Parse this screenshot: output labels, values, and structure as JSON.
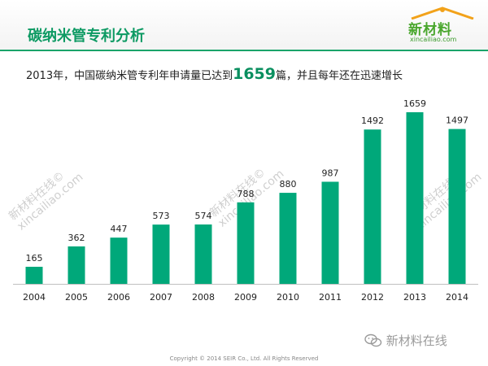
{
  "header": {
    "title": "碳纳米管专利分析",
    "logo_main": "新材料",
    "logo_sub": "xincailiao.com"
  },
  "subtitle": {
    "prefix": "2013年，中国碳纳米管专利年申请量已达到",
    "highlight": "1659",
    "suffix": "篇，并且每年还在迅速增长"
  },
  "watermarks": [
    {
      "line1": "新材料在线©",
      "line2": "xincailiao.com"
    },
    {
      "line1": "新材料在线©",
      "line2": "xincailiao.com"
    },
    {
      "line1": "新材料在线©",
      "line2": "xincailiao.com"
    }
  ],
  "footer": {
    "copyright": "Copyright © 2014  SEIR Co., Ltd. All Rights Reserved",
    "wechat_label": "新材料在线"
  },
  "colors": {
    "bar": "#00a87a",
    "title": "#0d9a63",
    "axis": "#bfbfbf"
  },
  "chart_data": {
    "type": "bar",
    "title": "",
    "xlabel": "",
    "ylabel": "",
    "categories": [
      "2004",
      "2005",
      "2006",
      "2007",
      "2008",
      "2009",
      "2010",
      "2011",
      "2012",
      "2013",
      "2014"
    ],
    "values": [
      165,
      362,
      447,
      573,
      574,
      788,
      880,
      987,
      1492,
      1659,
      1497
    ],
    "ylim": [
      0,
      1659
    ],
    "grid": false,
    "legend": "none",
    "data_labels": true
  }
}
